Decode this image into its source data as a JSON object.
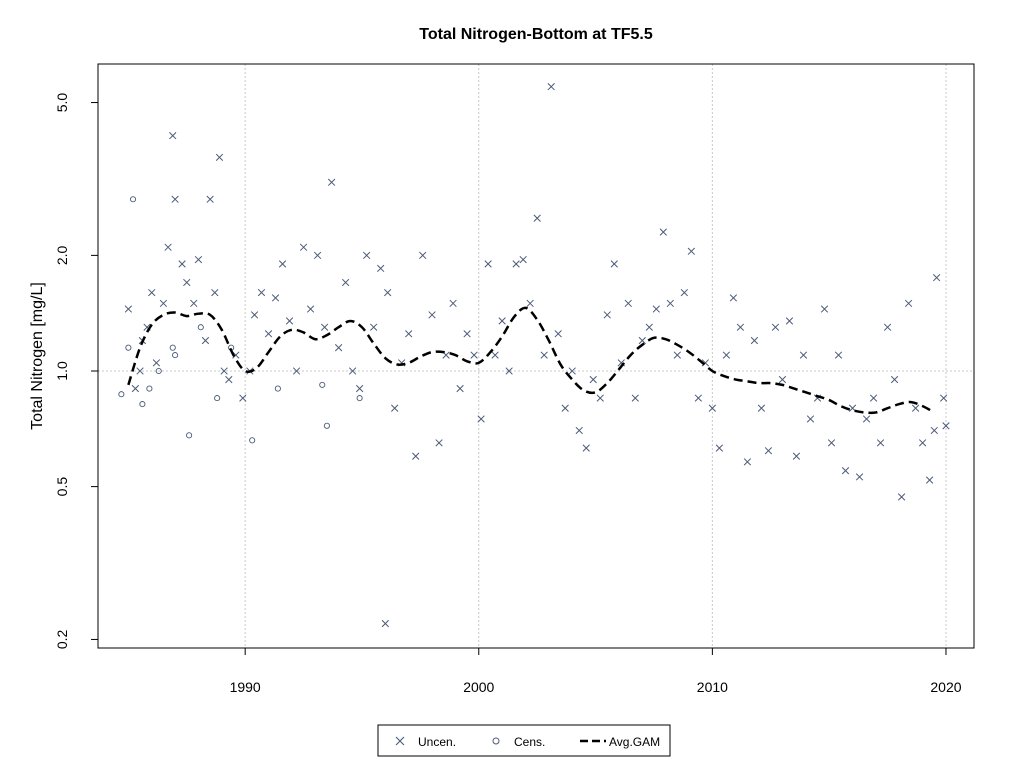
{
  "chart_data": {
    "type": "scatter",
    "title": "Total Nitrogen-Bottom at TF5.5",
    "xlabel": "",
    "ylabel": "Total Nitrogen [mg/L]",
    "y_scale": "log",
    "xlim": [
      1983.7,
      2021.2
    ],
    "ylim": [
      0.19,
      6.3
    ],
    "x_ticks": [
      1990,
      2000,
      2010,
      2020
    ],
    "x_tick_labels": [
      "1990",
      "2000",
      "2010",
      "2020"
    ],
    "y_ticks": [
      0.2,
      0.5,
      1.0,
      2.0,
      5.0
    ],
    "y_tick_labels": [
      "0.2",
      "0.5",
      "1.0",
      "2.0",
      "5.0"
    ],
    "grid": true,
    "reference_line_y": 1.0,
    "legend_position": "bottom-center",
    "colors": {
      "points": "#4a5a78",
      "gam": "#000000",
      "grid": "#c8c8c8"
    },
    "legend": [
      {
        "label": "Uncen.",
        "marker": "x"
      },
      {
        "label": "Cens.",
        "marker": "circle"
      },
      {
        "label": "Avg.GAM",
        "marker": "dashed-line"
      }
    ],
    "series": [
      {
        "name": "Uncen.",
        "marker": "x",
        "points": [
          [
            1985.0,
            1.45
          ],
          [
            1985.3,
            0.9
          ],
          [
            1985.5,
            1.0
          ],
          [
            1985.6,
            1.2
          ],
          [
            1985.8,
            1.3
          ],
          [
            1986.0,
            1.6
          ],
          [
            1986.2,
            1.05
          ],
          [
            1986.5,
            1.5
          ],
          [
            1986.7,
            2.1
          ],
          [
            1986.9,
            4.1
          ],
          [
            1987.0,
            2.8
          ],
          [
            1987.3,
            1.9
          ],
          [
            1987.5,
            1.7
          ],
          [
            1987.8,
            1.5
          ],
          [
            1988.0,
            1.95
          ],
          [
            1988.3,
            1.2
          ],
          [
            1988.5,
            2.8
          ],
          [
            1988.7,
            1.6
          ],
          [
            1988.9,
            3.6
          ],
          [
            1989.1,
            1.0
          ],
          [
            1989.3,
            0.95
          ],
          [
            1989.6,
            1.1
          ],
          [
            1989.9,
            0.85
          ],
          [
            1990.2,
            1.0
          ],
          [
            1990.4,
            1.4
          ],
          [
            1990.7,
            1.6
          ],
          [
            1991.0,
            1.25
          ],
          [
            1991.3,
            1.55
          ],
          [
            1991.6,
            1.9
          ],
          [
            1991.9,
            1.35
          ],
          [
            1992.2,
            1.0
          ],
          [
            1992.5,
            2.1
          ],
          [
            1992.8,
            1.45
          ],
          [
            1993.1,
            2.0
          ],
          [
            1993.4,
            1.3
          ],
          [
            1993.7,
            3.1
          ],
          [
            1994.0,
            1.15
          ],
          [
            1994.3,
            1.7
          ],
          [
            1994.6,
            1.0
          ],
          [
            1994.9,
            0.9
          ],
          [
            1995.2,
            2.0
          ],
          [
            1995.5,
            1.3
          ],
          [
            1995.8,
            1.85
          ],
          [
            1996.1,
            1.6
          ],
          [
            1996.4,
            0.8
          ],
          [
            1996.0,
            0.22
          ],
          [
            1996.7,
            1.05
          ],
          [
            1997.0,
            1.25
          ],
          [
            1997.3,
            0.6
          ],
          [
            1997.6,
            2.0
          ],
          [
            1998.0,
            1.4
          ],
          [
            1998.3,
            0.65
          ],
          [
            1998.6,
            1.1
          ],
          [
            1998.9,
            1.5
          ],
          [
            1999.2,
            0.9
          ],
          [
            1999.5,
            1.25
          ],
          [
            1999.8,
            1.1
          ],
          [
            2000.1,
            0.75
          ],
          [
            2000.4,
            1.9
          ],
          [
            2000.7,
            1.1
          ],
          [
            2001.0,
            1.35
          ],
          [
            2001.3,
            1.0
          ],
          [
            2001.6,
            1.9
          ],
          [
            2001.9,
            1.95
          ],
          [
            2002.2,
            1.5
          ],
          [
            2002.5,
            2.5
          ],
          [
            2002.8,
            1.1
          ],
          [
            2003.1,
            5.5
          ],
          [
            2003.4,
            1.25
          ],
          [
            2003.7,
            0.8
          ],
          [
            2004.0,
            1.0
          ],
          [
            2004.3,
            0.7
          ],
          [
            2004.6,
            0.63
          ],
          [
            2004.9,
            0.95
          ],
          [
            2005.2,
            0.85
          ],
          [
            2005.5,
            1.4
          ],
          [
            2005.8,
            1.9
          ],
          [
            2006.1,
            1.05
          ],
          [
            2006.4,
            1.5
          ],
          [
            2006.7,
            0.85
          ],
          [
            2007.0,
            1.2
          ],
          [
            2007.3,
            1.3
          ],
          [
            2007.6,
            1.45
          ],
          [
            2007.9,
            2.3
          ],
          [
            2008.2,
            1.5
          ],
          [
            2008.5,
            1.1
          ],
          [
            2008.8,
            1.6
          ],
          [
            2009.1,
            2.05
          ],
          [
            2009.4,
            0.85
          ],
          [
            2009.7,
            1.05
          ],
          [
            2010.0,
            0.8
          ],
          [
            2010.3,
            0.63
          ],
          [
            2010.6,
            1.1
          ],
          [
            2010.9,
            1.55
          ],
          [
            2011.2,
            1.3
          ],
          [
            2011.5,
            0.58
          ],
          [
            2011.8,
            1.2
          ],
          [
            2012.1,
            0.8
          ],
          [
            2012.4,
            0.62
          ],
          [
            2012.7,
            1.3
          ],
          [
            2013.0,
            0.95
          ],
          [
            2013.3,
            1.35
          ],
          [
            2013.6,
            0.6
          ],
          [
            2013.9,
            1.1
          ],
          [
            2014.2,
            0.75
          ],
          [
            2014.5,
            0.85
          ],
          [
            2014.8,
            1.45
          ],
          [
            2015.1,
            0.65
          ],
          [
            2015.4,
            1.1
          ],
          [
            2015.7,
            0.55
          ],
          [
            2016.0,
            0.8
          ],
          [
            2016.3,
            0.53
          ],
          [
            2016.6,
            0.75
          ],
          [
            2016.9,
            0.85
          ],
          [
            2017.2,
            0.65
          ],
          [
            2017.5,
            1.3
          ],
          [
            2017.8,
            0.95
          ],
          [
            2018.1,
            0.47
          ],
          [
            2018.4,
            1.5
          ],
          [
            2018.7,
            0.8
          ],
          [
            2019.0,
            0.65
          ],
          [
            2019.3,
            0.52
          ],
          [
            2019.5,
            0.7
          ],
          [
            2019.6,
            1.75
          ],
          [
            2019.9,
            0.85
          ],
          [
            2020.0,
            0.72
          ]
        ]
      },
      {
        "name": "Cens.",
        "marker": "circle",
        "points": [
          [
            1984.7,
            0.87
          ],
          [
            1985.0,
            1.15
          ],
          [
            1985.2,
            2.8
          ],
          [
            1985.9,
            0.9
          ],
          [
            1986.3,
            1.0
          ],
          [
            1987.0,
            1.1
          ],
          [
            1987.6,
            0.68
          ],
          [
            1988.1,
            1.3
          ],
          [
            1989.4,
            1.15
          ],
          [
            1990.3,
            0.66
          ],
          [
            1991.4,
            0.9
          ],
          [
            1993.3,
            0.92
          ],
          [
            1993.5,
            0.72
          ],
          [
            1994.9,
            0.85
          ],
          [
            1985.6,
            0.82
          ],
          [
            1986.9,
            1.15
          ],
          [
            1988.8,
            0.85
          ]
        ]
      }
    ],
    "avg_gam": {
      "name": "Avg.GAM",
      "style": "dashed",
      "points": [
        [
          1985.0,
          0.92
        ],
        [
          1985.5,
          1.15
        ],
        [
          1986.0,
          1.32
        ],
        [
          1986.5,
          1.4
        ],
        [
          1987.0,
          1.42
        ],
        [
          1987.5,
          1.39
        ],
        [
          1988.0,
          1.41
        ],
        [
          1988.5,
          1.4
        ],
        [
          1989.0,
          1.28
        ],
        [
          1989.5,
          1.1
        ],
        [
          1990.0,
          1.0
        ],
        [
          1990.5,
          1.02
        ],
        [
          1991.0,
          1.12
        ],
        [
          1991.5,
          1.23
        ],
        [
          1992.0,
          1.28
        ],
        [
          1992.5,
          1.26
        ],
        [
          1993.0,
          1.21
        ],
        [
          1993.5,
          1.24
        ],
        [
          1994.0,
          1.3
        ],
        [
          1994.5,
          1.35
        ],
        [
          1995.0,
          1.3
        ],
        [
          1995.5,
          1.18
        ],
        [
          1996.0,
          1.08
        ],
        [
          1996.5,
          1.04
        ],
        [
          1997.0,
          1.05
        ],
        [
          1997.5,
          1.09
        ],
        [
          1998.0,
          1.12
        ],
        [
          1998.5,
          1.12
        ],
        [
          1999.0,
          1.1
        ],
        [
          1999.5,
          1.06
        ],
        [
          2000.0,
          1.05
        ],
        [
          2000.5,
          1.12
        ],
        [
          2001.0,
          1.23
        ],
        [
          2001.5,
          1.38
        ],
        [
          2002.0,
          1.46
        ],
        [
          2002.5,
          1.36
        ],
        [
          2003.0,
          1.2
        ],
        [
          2003.5,
          1.04
        ],
        [
          2004.0,
          0.95
        ],
        [
          2004.5,
          0.89
        ],
        [
          2005.0,
          0.88
        ],
        [
          2005.5,
          0.93
        ],
        [
          2006.0,
          1.01
        ],
        [
          2006.5,
          1.1
        ],
        [
          2007.0,
          1.17
        ],
        [
          2007.5,
          1.22
        ],
        [
          2008.0,
          1.21
        ],
        [
          2008.5,
          1.17
        ],
        [
          2009.0,
          1.12
        ],
        [
          2009.5,
          1.06
        ],
        [
          2010.0,
          1.0
        ],
        [
          2010.5,
          0.97
        ],
        [
          2011.0,
          0.95
        ],
        [
          2011.5,
          0.94
        ],
        [
          2012.0,
          0.93
        ],
        [
          2012.5,
          0.93
        ],
        [
          2013.0,
          0.92
        ],
        [
          2013.5,
          0.9
        ],
        [
          2014.0,
          0.88
        ],
        [
          2014.5,
          0.86
        ],
        [
          2015.0,
          0.84
        ],
        [
          2015.5,
          0.81
        ],
        [
          2016.0,
          0.79
        ],
        [
          2016.5,
          0.78
        ],
        [
          2017.0,
          0.78
        ],
        [
          2017.5,
          0.8
        ],
        [
          2018.0,
          0.82
        ],
        [
          2018.5,
          0.83
        ],
        [
          2019.0,
          0.81
        ],
        [
          2019.5,
          0.78
        ]
      ]
    }
  }
}
